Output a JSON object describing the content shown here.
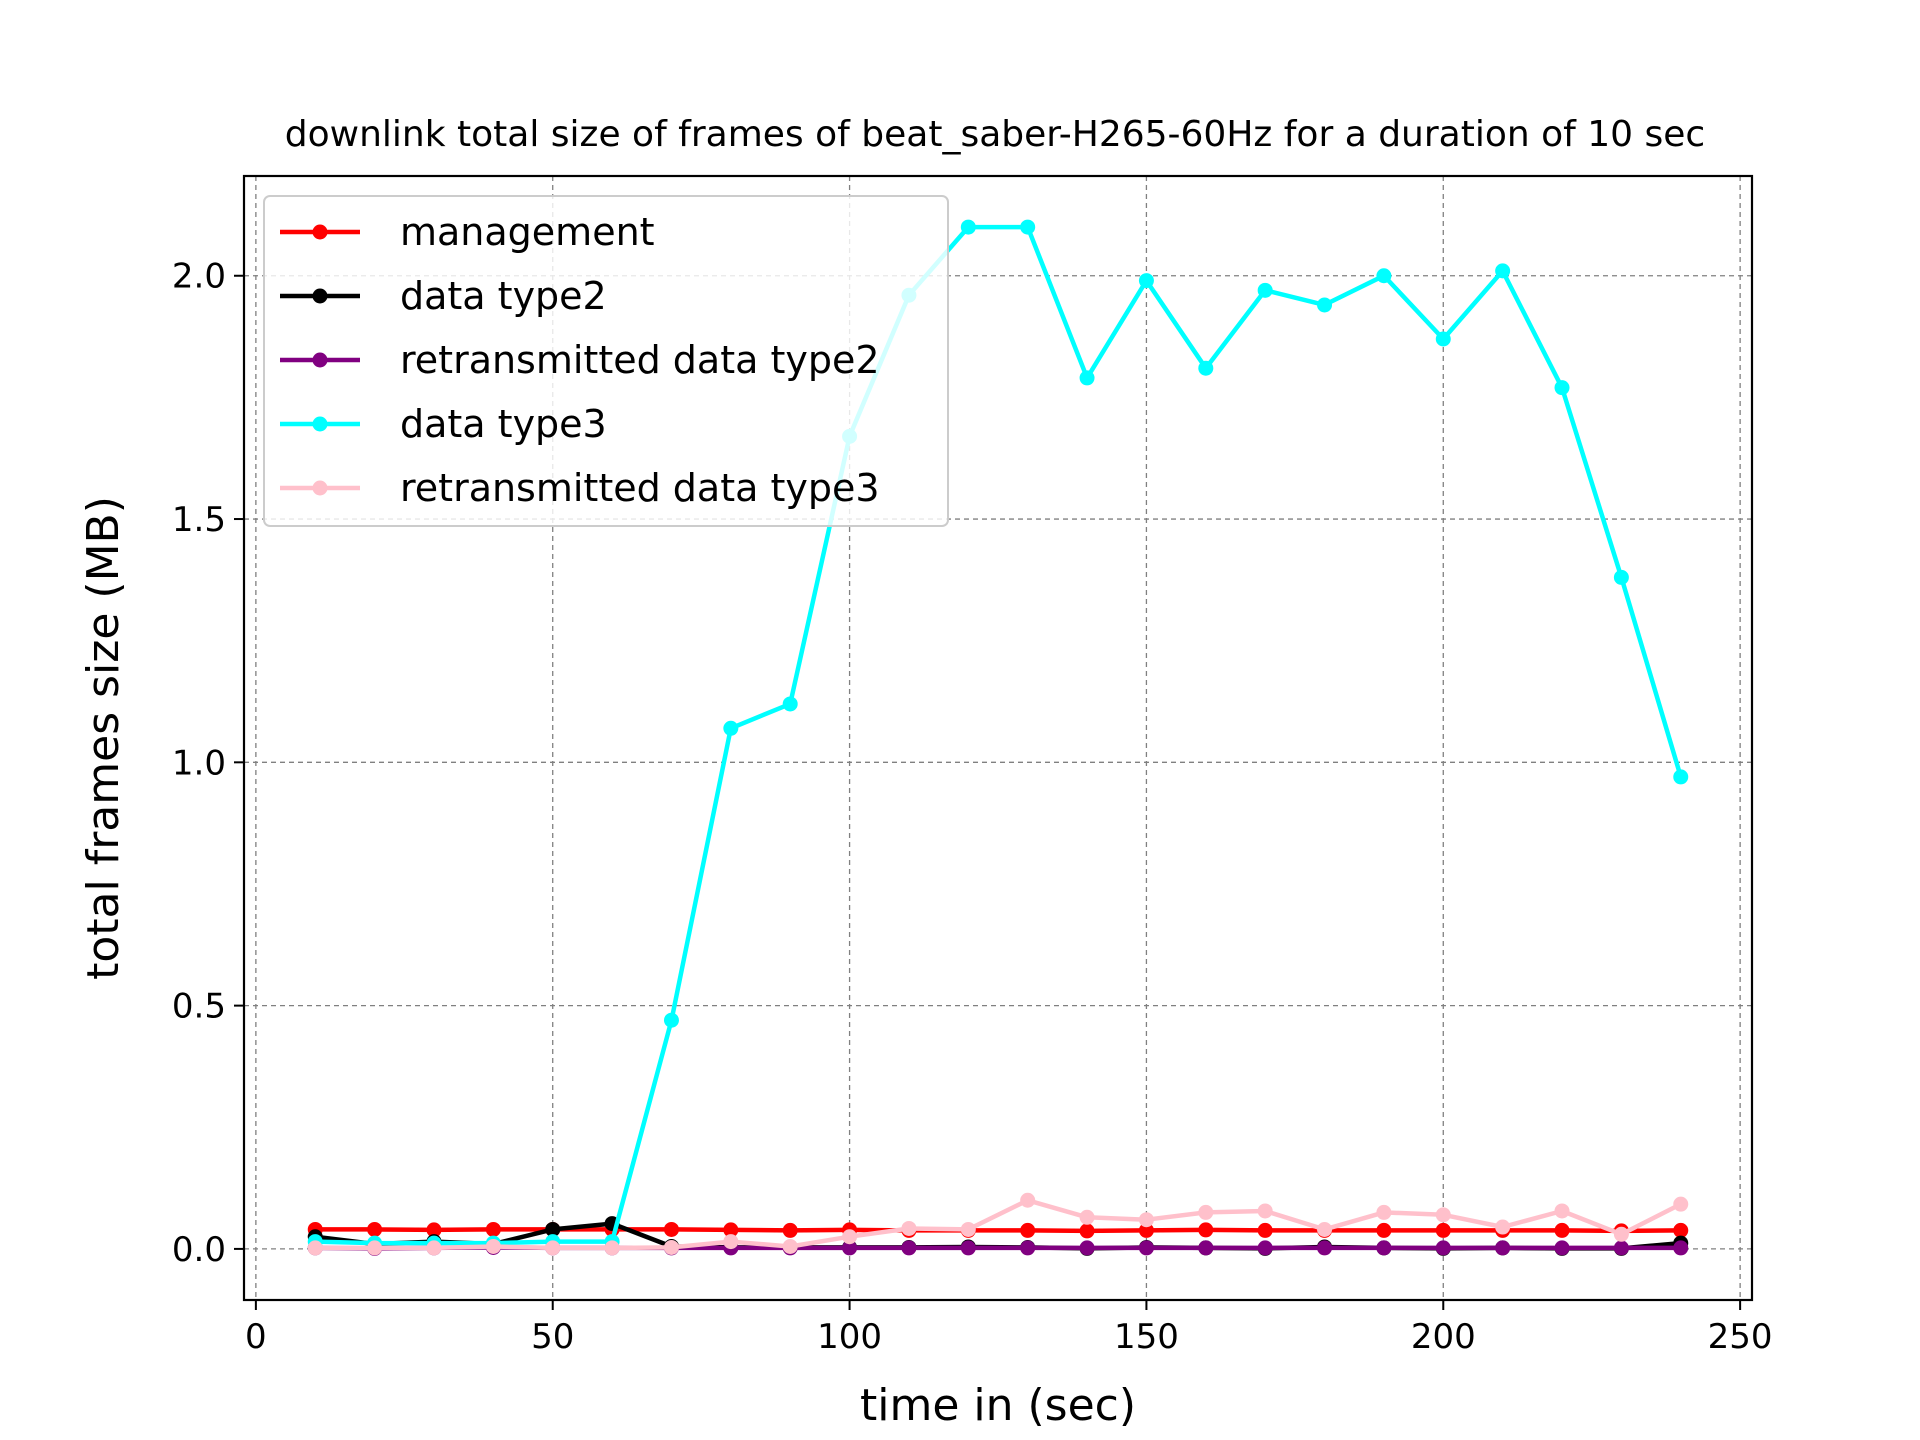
{
  "chart_data": {
    "type": "line",
    "title": "downlink total size of frames of beat_saber-H265-60Hz for a duration of 10 sec",
    "xlabel": "time in (sec)",
    "ylabel": "total frames size (MB)",
    "xlim": [
      -2,
      252
    ],
    "ylim": [
      -0.105,
      2.205
    ],
    "xticks": [
      0,
      50,
      100,
      150,
      200,
      250
    ],
    "xtick_labels": [
      "0",
      "50",
      "100",
      "150",
      "200",
      "250"
    ],
    "yticks": [
      0.0,
      0.5,
      1.0,
      1.5,
      2.0
    ],
    "ytick_labels": [
      "0.0",
      "0.5",
      "1.0",
      "1.5",
      "2.0"
    ],
    "grid": true,
    "legend_position": "top-left",
    "x": [
      10,
      20,
      30,
      40,
      50,
      60,
      70,
      80,
      90,
      100,
      110,
      120,
      130,
      140,
      150,
      160,
      170,
      180,
      190,
      200,
      210,
      220,
      230,
      240
    ],
    "series": [
      {
        "name": "management",
        "color": "#ff0000",
        "values": [
          0.04,
          0.04,
          0.039,
          0.04,
          0.04,
          0.04,
          0.04,
          0.039,
          0.038,
          0.039,
          0.038,
          0.038,
          0.038,
          0.037,
          0.038,
          0.039,
          0.038,
          0.038,
          0.038,
          0.038,
          0.038,
          0.038,
          0.037,
          0.038
        ]
      },
      {
        "name": "data type2",
        "color": "#000000",
        "values": [
          0.025,
          0.01,
          0.015,
          0.01,
          0.04,
          0.052,
          0.005,
          0.003,
          0.003,
          0.003,
          0.003,
          0.004,
          0.003,
          0.001,
          0.003,
          0.002,
          0.001,
          0.004,
          0.002,
          0.001,
          0.002,
          0.001,
          0.001,
          0.012
        ]
      },
      {
        "name": "retransmitted data type2",
        "color": "#800080",
        "values": [
          0.002,
          0.001,
          0.002,
          0.003,
          0.002,
          0.002,
          0.002,
          0.002,
          0.002,
          0.002,
          0.002,
          0.002,
          0.002,
          0.002,
          0.002,
          0.002,
          0.002,
          0.002,
          0.002,
          0.002,
          0.002,
          0.002,
          0.002,
          0.002
        ]
      },
      {
        "name": "data type3",
        "color": "#00ffff",
        "values": [
          0.015,
          0.012,
          0.012,
          0.012,
          0.015,
          0.015,
          0.47,
          1.07,
          1.12,
          1.67,
          1.96,
          2.1,
          2.1,
          1.79,
          1.99,
          1.81,
          1.97,
          1.94,
          2.0,
          1.87,
          2.01,
          1.77,
          1.38,
          0.97
        ]
      },
      {
        "name": "retransmitted data type3",
        "color": "#ffc0cb",
        "values": [
          0.002,
          0.002,
          0.002,
          0.005,
          0.002,
          0.002,
          0.003,
          0.015,
          0.005,
          0.025,
          0.042,
          0.04,
          0.1,
          0.065,
          0.06,
          0.075,
          0.078,
          0.04,
          0.075,
          0.07,
          0.045,
          0.078,
          0.03,
          0.092
        ]
      }
    ]
  }
}
